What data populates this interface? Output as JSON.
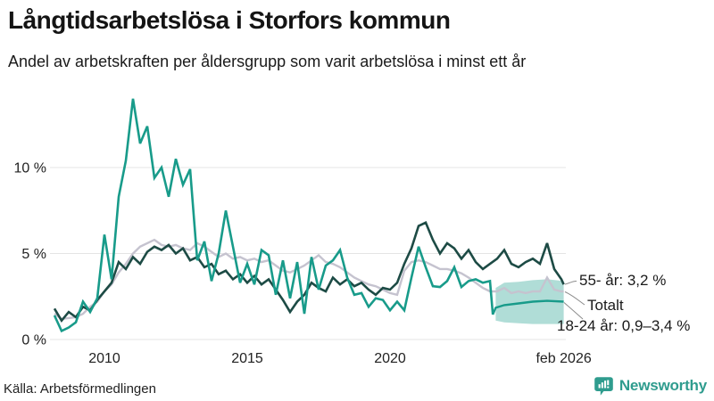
{
  "header": {
    "title": "Långtidsarbetslösa i Storfors kommun",
    "subtitle": "Andel av arbetskraften per åldersgrupp som varit arbetslösa i minst ett år"
  },
  "footer": {
    "source": "Källa: Arbetsförmedlingen",
    "brand": "Newsworthy",
    "brand_icon": "newsworthy-bubble-chart-icon",
    "brand_color": "#2f9c8e"
  },
  "chart_data": {
    "type": "line",
    "title": "Långtidsarbetslösa i Storfors kommun",
    "xlabel": "",
    "ylabel": "Andel av arbetskraften (%)",
    "grid": "horizontal",
    "x_axis": {
      "range": [
        2008.1,
        2026.2
      ],
      "ticks": [
        {
          "label": "2010",
          "year": 2010
        },
        {
          "label": "2015",
          "year": 2015
        },
        {
          "label": "2020",
          "year": 2020
        },
        {
          "label": "feb 2026",
          "year": 2026.08
        }
      ]
    },
    "y_axis": {
      "range": [
        0,
        14.5
      ],
      "unit": "%",
      "ticks": [
        {
          "label": "0 %",
          "value": 0
        },
        {
          "label": "5 %",
          "value": 5
        },
        {
          "label": "10 %",
          "value": 10
        }
      ]
    },
    "colors": {
      "young": "#189b8a",
      "total": "#c5c3cf",
      "old": "#1d4b45",
      "band": "#189b8a",
      "leader": "#8a8a8a",
      "gridline": "#e4e4e4"
    },
    "series": [
      {
        "id": "old",
        "name": "55- år",
        "color": "#1d4b45",
        "end_value": "3,2 %",
        "points": [
          [
            2008.25,
            1.8
          ],
          [
            2008.5,
            1.1
          ],
          [
            2008.75,
            1.6
          ],
          [
            2009,
            1.3
          ],
          [
            2009.25,
            1.9
          ],
          [
            2009.5,
            1.7
          ],
          [
            2009.75,
            2.3
          ],
          [
            2010,
            2.8
          ],
          [
            2010.25,
            3.3
          ],
          [
            2010.5,
            4.5
          ],
          [
            2010.75,
            4.1
          ],
          [
            2011,
            4.8
          ],
          [
            2011.25,
            4.4
          ],
          [
            2011.5,
            5.1
          ],
          [
            2011.75,
            5.4
          ],
          [
            2012,
            5.2
          ],
          [
            2012.25,
            5.5
          ],
          [
            2012.5,
            5.0
          ],
          [
            2012.75,
            5.3
          ],
          [
            2013,
            4.6
          ],
          [
            2013.25,
            4.8
          ],
          [
            2013.5,
            4.2
          ],
          [
            2013.75,
            4.4
          ],
          [
            2014,
            3.8
          ],
          [
            2014.25,
            4.0
          ],
          [
            2014.5,
            3.5
          ],
          [
            2014.75,
            3.8
          ],
          [
            2015,
            3.3
          ],
          [
            2015.25,
            3.7
          ],
          [
            2015.5,
            3.2
          ],
          [
            2015.75,
            3.5
          ],
          [
            2016,
            2.9
          ],
          [
            2016.25,
            2.3
          ],
          [
            2016.5,
            1.6
          ],
          [
            2016.75,
            2.2
          ],
          [
            2017,
            2.6
          ],
          [
            2017.25,
            3.3
          ],
          [
            2017.5,
            3.0
          ],
          [
            2017.75,
            2.8
          ],
          [
            2018,
            3.6
          ],
          [
            2018.25,
            3.2
          ],
          [
            2018.5,
            3.5
          ],
          [
            2018.75,
            3.1
          ],
          [
            2019,
            3.3
          ],
          [
            2019.25,
            2.9
          ],
          [
            2019.5,
            2.6
          ],
          [
            2019.75,
            3.0
          ],
          [
            2020,
            2.9
          ],
          [
            2020.25,
            3.3
          ],
          [
            2020.5,
            4.4
          ],
          [
            2020.75,
            5.3
          ],
          [
            2021,
            6.6
          ],
          [
            2021.25,
            6.8
          ],
          [
            2021.5,
            5.8
          ],
          [
            2021.75,
            5.0
          ],
          [
            2022,
            5.6
          ],
          [
            2022.25,
            5.3
          ],
          [
            2022.5,
            4.7
          ],
          [
            2022.75,
            5.2
          ],
          [
            2023,
            4.5
          ],
          [
            2023.25,
            4.1
          ],
          [
            2023.5,
            4.4
          ],
          [
            2023.75,
            4.7
          ],
          [
            2024,
            5.2
          ],
          [
            2024.25,
            4.4
          ],
          [
            2024.5,
            4.2
          ],
          [
            2024.75,
            4.5
          ],
          [
            2025,
            4.7
          ],
          [
            2025.25,
            4.4
          ],
          [
            2025.5,
            5.6
          ],
          [
            2025.75,
            4.1
          ],
          [
            2026,
            3.5
          ],
          [
            2026.08,
            3.2
          ]
        ]
      },
      {
        "id": "total",
        "name": "Totalt",
        "color": "#c5c3cf",
        "end_value": "2,8 %",
        "points": [
          [
            2008.25,
            1.5
          ],
          [
            2008.5,
            1.2
          ],
          [
            2008.75,
            1.25
          ],
          [
            2009,
            1.3
          ],
          [
            2009.25,
            1.5
          ],
          [
            2009.5,
            1.9
          ],
          [
            2009.75,
            2.2
          ],
          [
            2010,
            2.8
          ],
          [
            2010.25,
            3.2
          ],
          [
            2010.5,
            3.9
          ],
          [
            2010.75,
            4.4
          ],
          [
            2011,
            5.0
          ],
          [
            2011.25,
            5.4
          ],
          [
            2011.5,
            5.6
          ],
          [
            2011.75,
            5.8
          ],
          [
            2012,
            5.5
          ],
          [
            2012.25,
            5.4
          ],
          [
            2012.5,
            5.5
          ],
          [
            2012.75,
            5.3
          ],
          [
            2013,
            5.2
          ],
          [
            2013.25,
            5.6
          ],
          [
            2013.5,
            5.4
          ],
          [
            2013.75,
            5.1
          ],
          [
            2014,
            4.8
          ],
          [
            2014.25,
            5.0
          ],
          [
            2014.5,
            4.7
          ],
          [
            2014.75,
            4.8
          ],
          [
            2015,
            4.6
          ],
          [
            2015.25,
            4.7
          ],
          [
            2015.5,
            4.5
          ],
          [
            2015.75,
            4.6
          ],
          [
            2016,
            4.3
          ],
          [
            2016.25,
            4.0
          ],
          [
            2016.5,
            3.9
          ],
          [
            2016.75,
            4.1
          ],
          [
            2017,
            4.3
          ],
          [
            2017.25,
            4.6
          ],
          [
            2017.5,
            4.9
          ],
          [
            2017.75,
            4.5
          ],
          [
            2018,
            4.4
          ],
          [
            2018.25,
            4.2
          ],
          [
            2018.5,
            3.9
          ],
          [
            2018.75,
            3.6
          ],
          [
            2019,
            3.4
          ],
          [
            2019.25,
            3.2
          ],
          [
            2019.5,
            3.1
          ],
          [
            2019.75,
            2.9
          ],
          [
            2020,
            2.7
          ],
          [
            2020.25,
            2.6
          ],
          [
            2020.5,
            4.0
          ],
          [
            2020.75,
            4.5
          ],
          [
            2021,
            4.6
          ],
          [
            2021.25,
            4.5
          ],
          [
            2021.5,
            4.3
          ],
          [
            2021.75,
            4.1
          ],
          [
            2022,
            4.1
          ],
          [
            2022.25,
            4.0
          ],
          [
            2022.5,
            3.85
          ],
          [
            2022.75,
            3.6
          ],
          [
            2023,
            3.3
          ],
          [
            2023.25,
            3.0
          ],
          [
            2023.5,
            2.8
          ],
          [
            2023.75,
            2.8
          ],
          [
            2024,
            3.0
          ],
          [
            2024.25,
            2.7
          ],
          [
            2024.5,
            2.8
          ],
          [
            2024.75,
            2.7
          ],
          [
            2025,
            2.8
          ],
          [
            2025.25,
            2.8
          ],
          [
            2025.5,
            3.6
          ],
          [
            2025.75,
            2.9
          ],
          [
            2026,
            2.8
          ],
          [
            2026.08,
            2.8
          ]
        ]
      },
      {
        "id": "young",
        "name": "18-24 år",
        "color": "#189b8a",
        "end_value": "0,9–3,4 %",
        "points": [
          [
            2008.25,
            1.4
          ],
          [
            2008.5,
            0.5
          ],
          [
            2008.75,
            0.7
          ],
          [
            2009,
            1.0
          ],
          [
            2009.25,
            2.2
          ],
          [
            2009.5,
            1.6
          ],
          [
            2009.75,
            2.4
          ],
          [
            2010,
            6.1
          ],
          [
            2010.25,
            3.5
          ],
          [
            2010.5,
            8.3
          ],
          [
            2010.75,
            10.4
          ],
          [
            2011,
            14.0
          ],
          [
            2011.25,
            11.4
          ],
          [
            2011.5,
            12.4
          ],
          [
            2011.75,
            9.4
          ],
          [
            2012,
            10.0
          ],
          [
            2012.25,
            8.3
          ],
          [
            2012.5,
            10.5
          ],
          [
            2012.75,
            9.0
          ],
          [
            2013,
            9.9
          ],
          [
            2013.25,
            4.6
          ],
          [
            2013.5,
            5.7
          ],
          [
            2013.75,
            3.4
          ],
          [
            2014,
            5.0
          ],
          [
            2014.25,
            7.5
          ],
          [
            2014.5,
            5.4
          ],
          [
            2014.75,
            3.3
          ],
          [
            2015,
            4.4
          ],
          [
            2015.25,
            3.2
          ],
          [
            2015.5,
            5.2
          ],
          [
            2015.75,
            4.9
          ],
          [
            2016,
            2.6
          ],
          [
            2016.25,
            4.6
          ],
          [
            2016.5,
            2.4
          ],
          [
            2016.75,
            4.5
          ],
          [
            2017,
            1.5
          ],
          [
            2017.25,
            4.8
          ],
          [
            2017.5,
            2.9
          ],
          [
            2017.75,
            4.3
          ],
          [
            2018,
            4.6
          ],
          [
            2018.25,
            5.2
          ],
          [
            2018.5,
            3.6
          ],
          [
            2018.75,
            2.6
          ],
          [
            2019,
            2.7
          ],
          [
            2019.25,
            1.9
          ],
          [
            2019.5,
            2.4
          ],
          [
            2019.75,
            2.3
          ],
          [
            2020,
            1.7
          ],
          [
            2020.25,
            2.2
          ],
          [
            2020.5,
            1.7
          ],
          [
            2020.75,
            3.6
          ],
          [
            2021,
            5.4
          ],
          [
            2021.25,
            4.2
          ],
          [
            2021.5,
            3.1
          ],
          [
            2021.75,
            3.05
          ],
          [
            2022,
            3.4
          ],
          [
            2022.25,
            4.2
          ],
          [
            2022.5,
            3.05
          ],
          [
            2022.75,
            3.4
          ],
          [
            2023,
            3.5
          ],
          [
            2023.25,
            3.3
          ],
          [
            2023.5,
            3.4
          ],
          [
            2023.6,
            1.45
          ]
        ]
      }
    ],
    "estimate_line": {
      "series": "18-24 år",
      "color": "#189b8a",
      "points": [
        [
          2023.6,
          1.45
        ],
        [
          2023.7,
          1.85
        ],
        [
          2024,
          2.0
        ],
        [
          2024.5,
          2.1
        ],
        [
          2025,
          2.2
        ],
        [
          2025.5,
          2.25
        ],
        [
          2026.08,
          2.2
        ]
      ]
    },
    "uncertainty_band": {
      "series": "18-24 år",
      "x": [
        2023.7,
        2024.0,
        2024.5,
        2025.0,
        2025.5,
        2026.08
      ],
      "upper": [
        3.0,
        3.3,
        3.35,
        3.45,
        3.5,
        3.4
      ],
      "lower": [
        1.1,
        1.0,
        0.95,
        0.9,
        0.9,
        0.9
      ]
    },
    "annotations": [
      {
        "series": "55- år",
        "label": "55- år: 3,2 %"
      },
      {
        "series": "Totalt",
        "label": "Totalt"
      },
      {
        "series": "18-24 år",
        "label": "18-24 år: 0,9–3,4 %"
      }
    ],
    "legend_position": "end-of-line-labels"
  }
}
